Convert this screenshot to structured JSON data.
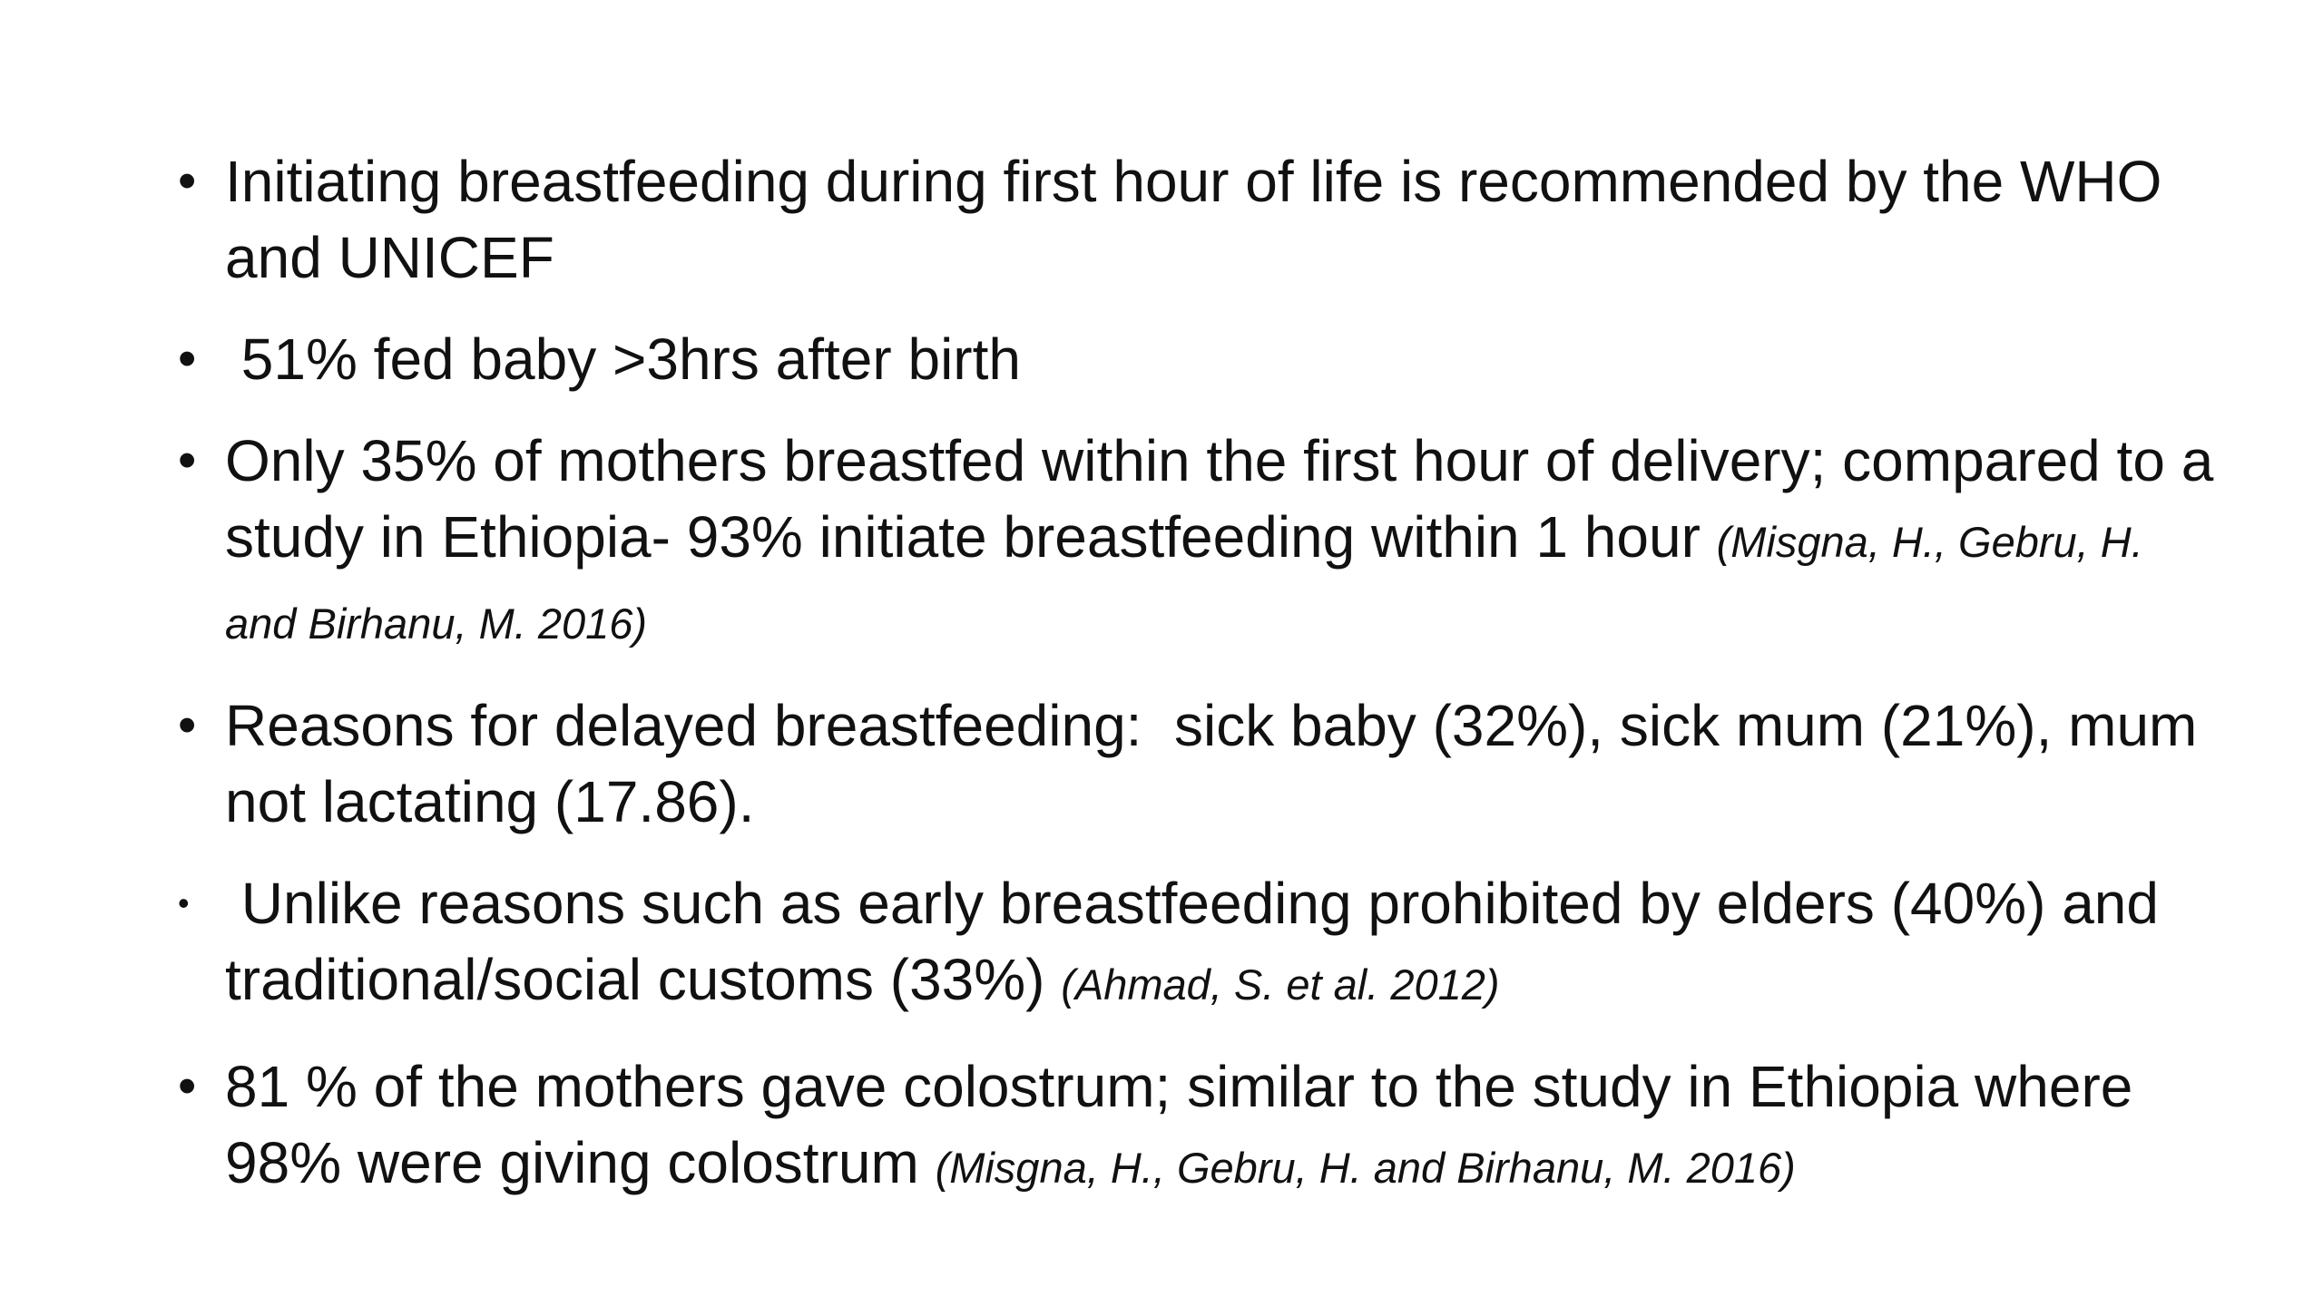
{
  "slide": {
    "background_color": "#ffffff",
    "text_color": "#111111",
    "bullet_char": "•",
    "bullets": [
      {
        "text": "Initiating breastfeeding during first hour of life is recommended by the WHO and UNICEF"
      },
      {
        "text": " 51% fed baby >3hrs after birth"
      },
      {
        "text": "Only 35% of mothers breastfed within the first hour of delivery; compared to a study in Ethiopia- 93% initiate breastfeeding within 1 hour ",
        "citation": "(Misgna, H., Gebru, H. and Birhanu, M. 2016)"
      },
      {
        "text": "Reasons for delayed breastfeeding:  sick baby (32%), sick mum (21%), mum not lactating (17.86)."
      },
      {
        "text": " Unlike reasons such as early breastfeeding prohibited by elders (40%) and traditional/social customs (33%) ",
        "citation": "(Ahmad, S. et al. 2012)"
      },
      {
        "text": "81 % of the mothers gave colostrum; similar to the study in Ethiopia where 98% were giving colostrum ",
        "citation": "(Misgna, H., Gebru, H. and Birhanu, M. 2016)"
      }
    ]
  }
}
